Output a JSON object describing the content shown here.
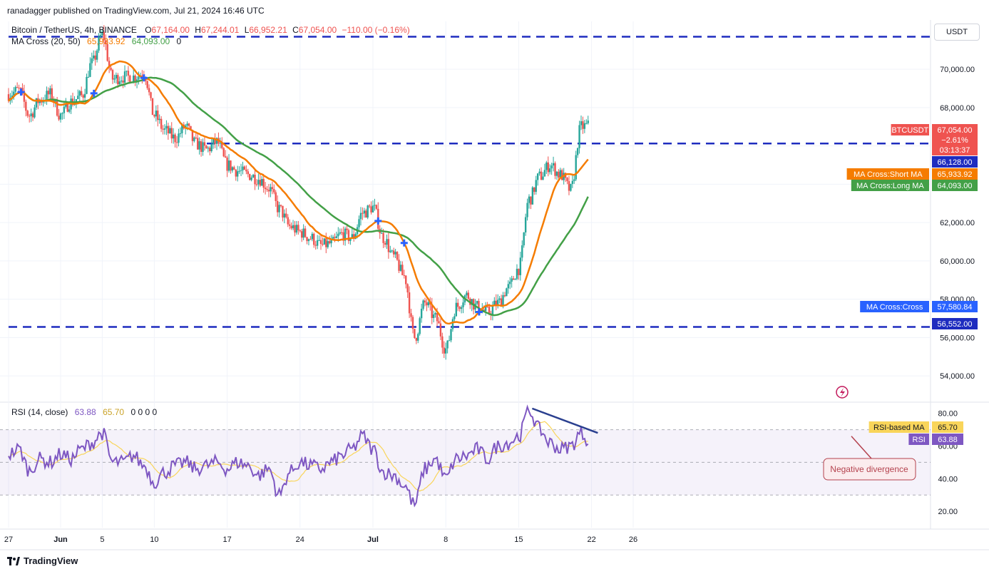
{
  "header": {
    "published": "ranadagger published on TradingView.com, Jul 21, 2024 16:46 UTC",
    "symbol": "Bitcoin / TetherUS, 4h, BINANCE",
    "ohlc": {
      "o_label": "O",
      "o": "67,164.00",
      "h_label": "H",
      "h": "67,244.01",
      "l_label": "L",
      "l": "66,952.21",
      "c_label": "C",
      "c": "67,054.00",
      "change": "−110.00 (−0.16%)"
    },
    "ma_legend": "MA Cross (20, 50)",
    "ma_short_value": "65,933.92",
    "ma_long_value": "64,093.00",
    "ma_zero": "0"
  },
  "rsi_legend": {
    "label": "RSI (14, close)",
    "rsi": "63.88",
    "ma": "65.70",
    "zeros": "0  0  0  0"
  },
  "currency_button": "USDT",
  "footer": {
    "brand": "TradingView"
  },
  "colors": {
    "up": "#26a69a",
    "down": "#ef5350",
    "short_ma": "#f57c00",
    "long_ma": "#43a047",
    "rsi": "#7e57c2",
    "rsi_ma": "#f9d55a",
    "level_line": "#1e2cbf",
    "divergence": "#2a3f8f",
    "annotation": "#b4424e",
    "cross_marker": "#2962ff"
  },
  "price_labels": [
    {
      "text": "BTCUSDT",
      "value": "67,054.00",
      "sub1": "−2.61%",
      "sub2": "03:13:37",
      "color": "#ef5350"
    },
    {
      "text": "",
      "value": "66,128.00",
      "color": "#1e2cbf"
    },
    {
      "text": "MA Cross:Short MA",
      "value": "65,933.92",
      "color": "#f57c00"
    },
    {
      "text": "MA Cross:Long MA",
      "value": "64,093.00",
      "color": "#43a047"
    },
    {
      "text": "MA Cross:Cross",
      "value": "57,580.84",
      "color": "#2962ff"
    },
    {
      "text": "",
      "value": "56,552.00",
      "color": "#1e2cbf"
    }
  ],
  "rsi_labels": [
    {
      "text": "RSI-based MA",
      "value": "65.70",
      "color": "#f9d55a"
    },
    {
      "text": "RSI",
      "value": "63.88",
      "color": "#7e57c2"
    }
  ],
  "annotation": {
    "text": "Negative divergence"
  },
  "chart_data": {
    "type": "candlestick",
    "price_axis": {
      "ticks": [
        54000,
        56000,
        58000,
        60000,
        62000,
        64000,
        66000,
        68000,
        70000
      ],
      "tick_labels": [
        "54,000.00",
        "56,000.00",
        "58,000.00",
        "60,000.00",
        "62,000.00",
        "64,000.00",
        "66,000.00",
        "68,000.00",
        "70,000.00"
      ],
      "range": [
        52700,
        72500
      ]
    },
    "rsi_axis": {
      "ticks": [
        20,
        40,
        60,
        80
      ],
      "tick_labels": [
        "20.00",
        "40.00",
        "60.00",
        "80.00"
      ],
      "range": [
        10,
        86
      ],
      "band": [
        30,
        70
      ],
      "mid": 50
    },
    "time_axis": {
      "labels": [
        "27",
        "Jun",
        "5",
        "10",
        "17",
        "24",
        "Jul",
        "8",
        "15",
        "22",
        "26"
      ],
      "positions_days": [
        0,
        5,
        9,
        14,
        21,
        28,
        35,
        42,
        49,
        56,
        60
      ]
    },
    "levels": [
      71700,
      66128,
      56552
    ],
    "price_keypoints": [
      [
        0,
        68700
      ],
      [
        1,
        68900
      ],
      [
        2,
        67600
      ],
      [
        3,
        68400
      ],
      [
        4,
        68700
      ],
      [
        5,
        67600
      ],
      [
        6,
        68300
      ],
      [
        7,
        68600
      ],
      [
        8,
        70300
      ],
      [
        9,
        71800
      ],
      [
        10,
        69500
      ],
      [
        11,
        69600
      ],
      [
        12,
        69600
      ],
      [
        13,
        69800
      ],
      [
        14,
        67600
      ],
      [
        15,
        66800
      ],
      [
        16,
        66400
      ],
      [
        17,
        67000
      ],
      [
        18,
        66100
      ],
      [
        19,
        65800
      ],
      [
        20,
        66200
      ],
      [
        21,
        65000
      ],
      [
        22,
        64700
      ],
      [
        23,
        64500
      ],
      [
        24,
        64300
      ],
      [
        25,
        63800
      ],
      [
        26,
        62700
      ],
      [
        27,
        61800
      ],
      [
        28,
        61500
      ],
      [
        29,
        61200
      ],
      [
        30,
        60800
      ],
      [
        31,
        60900
      ],
      [
        32,
        61400
      ],
      [
        33,
        61200
      ],
      [
        34,
        62500
      ],
      [
        35,
        62800
      ],
      [
        36,
        61200
      ],
      [
        37,
        60200
      ],
      [
        38,
        59200
      ],
      [
        39,
        56000
      ],
      [
        40,
        57800
      ],
      [
        41,
        57000
      ],
      [
        42,
        55400
      ],
      [
        43,
        57600
      ],
      [
        44,
        58200
      ],
      [
        45,
        57600
      ],
      [
        46,
        57300
      ],
      [
        47,
        57800
      ],
      [
        48,
        58600
      ],
      [
        49,
        59600
      ],
      [
        50,
        63200
      ],
      [
        51,
        64400
      ],
      [
        52,
        65000
      ],
      [
        53,
        64500
      ],
      [
        54,
        63700
      ],
      [
        55,
        67000
      ],
      [
        55.7,
        67054
      ]
    ],
    "rsi_keypoints": [
      [
        0,
        55
      ],
      [
        1,
        58
      ],
      [
        2,
        45
      ],
      [
        3,
        52
      ],
      [
        4,
        50
      ],
      [
        5,
        55
      ],
      [
        6,
        52
      ],
      [
        7,
        58
      ],
      [
        8,
        62
      ],
      [
        9,
        68
      ],
      [
        10,
        50
      ],
      [
        11,
        50
      ],
      [
        12,
        54
      ],
      [
        13,
        48
      ],
      [
        14,
        38
      ],
      [
        15,
        44
      ],
      [
        16,
        48
      ],
      [
        17,
        50
      ],
      [
        18,
        46
      ],
      [
        19,
        48
      ],
      [
        20,
        50
      ],
      [
        21,
        46
      ],
      [
        22,
        50
      ],
      [
        23,
        48
      ],
      [
        24,
        42
      ],
      [
        25,
        46
      ],
      [
        26,
        30
      ],
      [
        27,
        44
      ],
      [
        28,
        50
      ],
      [
        29,
        48
      ],
      [
        30,
        46
      ],
      [
        31,
        50
      ],
      [
        32,
        54
      ],
      [
        33,
        58
      ],
      [
        34,
        66
      ],
      [
        35,
        58
      ],
      [
        36,
        44
      ],
      [
        37,
        42
      ],
      [
        38,
        36
      ],
      [
        39,
        24
      ],
      [
        40,
        46
      ],
      [
        41,
        52
      ],
      [
        42,
        40
      ],
      [
        43,
        52
      ],
      [
        44,
        54
      ],
      [
        45,
        58
      ],
      [
        46,
        52
      ],
      [
        47,
        60
      ],
      [
        48,
        62
      ],
      [
        49,
        66
      ],
      [
        50,
        82
      ],
      [
        51,
        70
      ],
      [
        52,
        62
      ],
      [
        53,
        58
      ],
      [
        54,
        60
      ],
      [
        55,
        68
      ],
      [
        55.7,
        63.88
      ]
    ],
    "moving_averages": [
      {
        "name": "MA Cross:Short MA",
        "period": 20
      },
      {
        "name": "MA Cross:Long MA",
        "period": 50
      }
    ],
    "cross_marker_days": [
      1.2,
      8.2,
      13.0,
      35.5,
      38.0,
      45.2
    ],
    "divergence_days": [
      50.3,
      56.6
    ]
  }
}
